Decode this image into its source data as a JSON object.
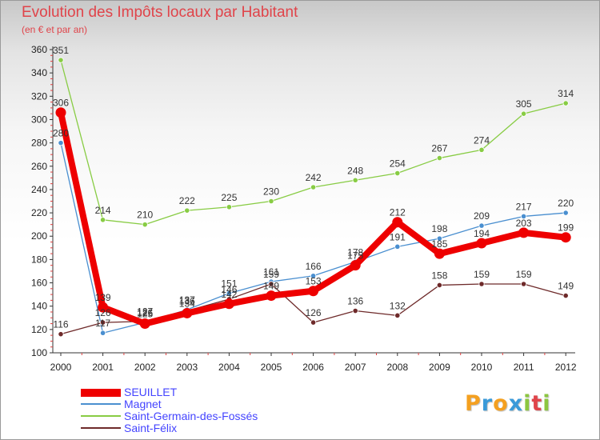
{
  "chart_data": {
    "type": "line",
    "title": "Evolution des Impôts locaux par Habitant",
    "subtitle": "(en € et par an)",
    "xlabel": "",
    "ylabel": "",
    "ylim": [
      100,
      360
    ],
    "yticks": [
      100,
      120,
      140,
      160,
      180,
      200,
      220,
      240,
      260,
      280,
      300,
      320,
      340,
      360
    ],
    "x": [
      "2000",
      "2001",
      "2002",
      "2003",
      "2004",
      "2005",
      "2006",
      "2007",
      "2008",
      "2009",
      "2010",
      "2011",
      "2012"
    ],
    "grid": false,
    "legend_position": "bottom-left",
    "series": [
      {
        "name": "Magnet",
        "color": "#4a8fd0",
        "values": [
          280,
          117,
          126,
          137,
          151,
          161,
          166,
          178,
          191,
          198,
          209,
          217,
          220
        ],
        "labels": [
          "280",
          "117",
          "126",
          "137",
          "151",
          "161",
          "166",
          "178",
          "191",
          "198",
          "209",
          "217",
          "220"
        ]
      },
      {
        "name": "Saint-Germain-des-Fossés",
        "color": "#88cc44",
        "values": [
          351,
          214,
          210,
          222,
          225,
          230,
          242,
          248,
          254,
          267,
          274,
          305,
          314
        ],
        "labels": [
          "351",
          "214",
          "210",
          "222",
          "225",
          "230",
          "242",
          "248",
          "254",
          "267",
          "274",
          "305",
          "314"
        ]
      },
      {
        "name": "Saint-Félix",
        "color": "#6e2a2a",
        "values": [
          116,
          126,
          127,
          136,
          146,
          159,
          126,
          136,
          132,
          158,
          159,
          159,
          149
        ],
        "labels": [
          "116",
          "126",
          "127",
          "136",
          "146",
          "159",
          "126",
          "136",
          "132",
          "158",
          "159",
          "159",
          "149"
        ]
      },
      {
        "name": "SEUILLET",
        "color": "#ee0000",
        "values": [
          306,
          139,
          125,
          134,
          142,
          149,
          153,
          175,
          212,
          185,
          194,
          203,
          199
        ],
        "labels": [
          "306",
          "139",
          "125",
          "134",
          "142",
          "149",
          "153",
          "175",
          "212",
          "185",
          "194",
          "203",
          "199"
        ]
      }
    ],
    "legend": [
      "SEUILLET",
      "Magnet",
      "Saint-Germain-des-Fossés",
      "Saint-Félix"
    ]
  },
  "logo": {
    "letters": [
      "P",
      "r",
      "o",
      "x",
      "i",
      "t",
      "i"
    ],
    "colors": [
      "#f4a020",
      "#3a9ad9",
      "#f4a020",
      "#3a9ad9",
      "#8cc63f",
      "#e0444a",
      "#8cc63f"
    ]
  }
}
